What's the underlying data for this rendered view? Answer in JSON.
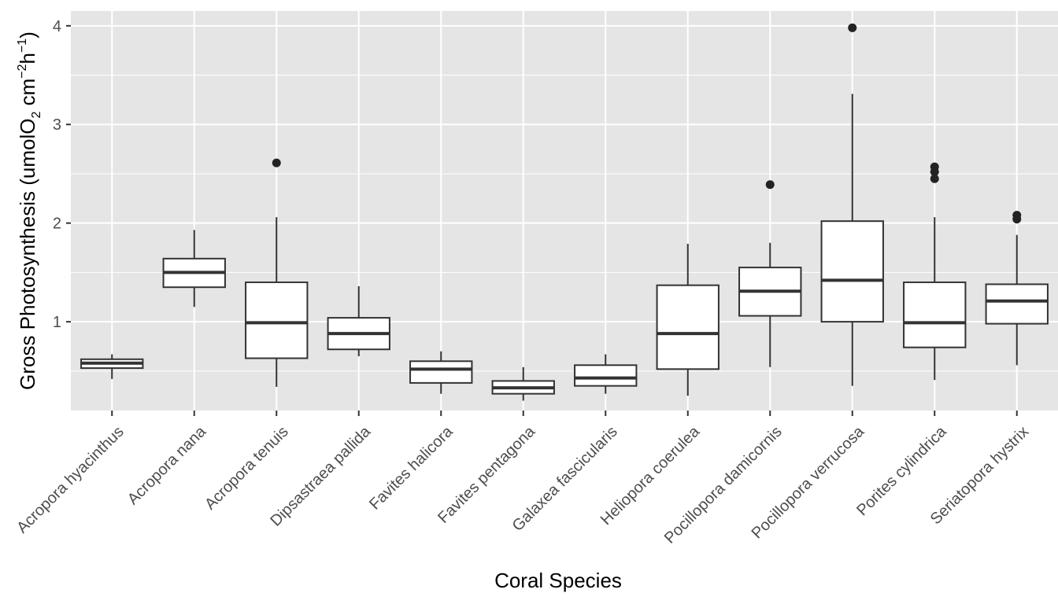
{
  "chart_data": {
    "type": "boxplot",
    "xlabel": "Coral Species",
    "ylabel": {
      "prefix": "Gross Photosynthesis (umolO",
      "sub": "2",
      "mid1": " cm",
      "sup1": "−2",
      "mid2": "h",
      "sup2": "−1",
      "suffix": ")"
    },
    "ylim": [
      0.1,
      4.15
    ],
    "yticks": [
      1,
      2,
      3,
      4
    ],
    "grid": true,
    "colors": {
      "panel": "#e5e5e5",
      "grid": "#ffffff",
      "box_fill": "#ffffff",
      "line": "#333333",
      "outlier": "#222222"
    },
    "categories": [
      "Acropora hyacinthus",
      "Acropora nana",
      "Acropora tenuis",
      "Dipsastraea pallida",
      "Favites halicora",
      "Favites pentagona",
      "Galaxea fascicularis",
      "Heliopora coerulea",
      "Pocillopora damicornis",
      "Pocillopora verrucosa",
      "Porites cylindrica",
      "Seriatopora hystrix"
    ],
    "boxes": [
      {
        "min": 0.42,
        "q1": 0.53,
        "median": 0.58,
        "q3": 0.62,
        "max": 0.67,
        "outliers": []
      },
      {
        "min": 1.15,
        "q1": 1.35,
        "median": 1.5,
        "q3": 1.64,
        "max": 1.93,
        "outliers": []
      },
      {
        "min": 0.34,
        "q1": 0.63,
        "median": 0.99,
        "q3": 1.4,
        "max": 2.06,
        "outliers": [
          2.61
        ]
      },
      {
        "min": 0.65,
        "q1": 0.72,
        "median": 0.88,
        "q3": 1.04,
        "max": 1.36,
        "outliers": []
      },
      {
        "min": 0.27,
        "q1": 0.38,
        "median": 0.52,
        "q3": 0.6,
        "max": 0.7,
        "outliers": []
      },
      {
        "min": 0.2,
        "q1": 0.27,
        "median": 0.33,
        "q3": 0.4,
        "max": 0.54,
        "outliers": []
      },
      {
        "min": 0.27,
        "q1": 0.35,
        "median": 0.43,
        "q3": 0.56,
        "max": 0.67,
        "outliers": []
      },
      {
        "min": 0.25,
        "q1": 0.52,
        "median": 0.88,
        "q3": 1.37,
        "max": 1.79,
        "outliers": []
      },
      {
        "min": 0.54,
        "q1": 1.06,
        "median": 1.31,
        "q3": 1.55,
        "max": 1.8,
        "outliers": [
          2.39
        ]
      },
      {
        "min": 0.35,
        "q1": 1.0,
        "median": 1.42,
        "q3": 2.02,
        "max": 3.31,
        "outliers": [
          3.98
        ]
      },
      {
        "min": 0.41,
        "q1": 0.74,
        "median": 0.99,
        "q3": 1.4,
        "max": 2.06,
        "outliers": [
          2.45,
          2.52,
          2.57
        ]
      },
      {
        "min": 0.56,
        "q1": 0.98,
        "median": 1.21,
        "q3": 1.38,
        "max": 1.88,
        "outliers": [
          2.04,
          2.08
        ]
      }
    ]
  }
}
